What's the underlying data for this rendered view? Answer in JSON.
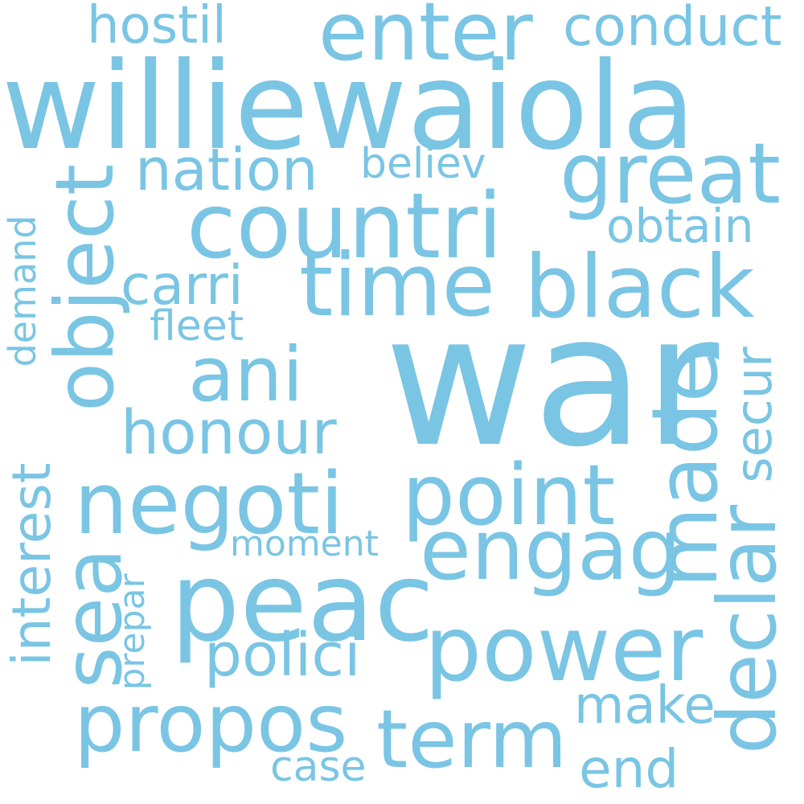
{
  "word_color": "#7ac5e4",
  "background": "#ffffff",
  "words": {
    "williewaiola": "williewaiola",
    "war": "war",
    "countri": "countri",
    "enter": "enter",
    "hostil": "hostil",
    "conduct": "conduct",
    "nation": "nation",
    "believ": "believ",
    "great": "great",
    "object": "object",
    "obtain": "obtain",
    "carri": "carri",
    "time": "time",
    "black": "black",
    "fleet": "fleet",
    "demand": "demand",
    "ani": "ani",
    "made": "made",
    "secur": "secur",
    "honour": "honour",
    "interest": "interest",
    "negoti": "negoti",
    "point": "point",
    "sea": "sea",
    "engag": "engag",
    "declar": "declar",
    "moment": "moment",
    "peac": "peac",
    "prepar": "prepar",
    "polici": "polici",
    "power": "power",
    "propos": "propos",
    "term": "term",
    "make": "make",
    "case": "case",
    "end": "end"
  }
}
